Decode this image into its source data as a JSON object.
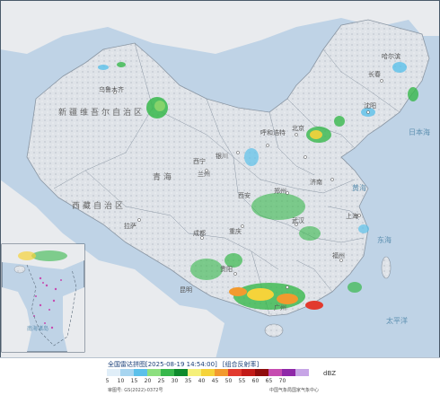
{
  "legend": {
    "title": "全国雷达拼图",
    "timestamp": "[2025-08-19 14:54:00]",
    "product": "[组合反射率]",
    "unit": "dBZ",
    "approval": "审图号: GS(2022)-0372号",
    "credit": "中国气象局国家气象中心",
    "scale_colors": [
      "#e0eef8",
      "#a7d5f0",
      "#5bc0ea",
      "#8ddf7f",
      "#37b84b",
      "#0e8a2c",
      "#f5f07a",
      "#f5d33a",
      "#f29a2e",
      "#e23a2e",
      "#c21b18",
      "#8f0c0c",
      "#c64bb0",
      "#8f28a8",
      "#c7a5e6"
    ],
    "scale_ticks": [
      "5",
      "10",
      "15",
      "20",
      "25",
      "30",
      "35",
      "40",
      "45",
      "50",
      "55",
      "60",
      "65",
      "70"
    ]
  },
  "map": {
    "labels": {
      "urumqi": "乌鲁木齐",
      "xinjiang": "新疆维吾尔自治区",
      "tibet": "西藏自治区",
      "qinghai": "青海",
      "xining": "西宁",
      "lanzhou": "兰州",
      "yinchuan": "银川",
      "hohhot": "呼和浩特",
      "beijing": "北京",
      "shenyang": "沈阳",
      "changchun": "长春",
      "harbin": "哈尔滨",
      "xian": "西安",
      "zhengzhou": "郑州",
      "jinan": "济南",
      "wuhan": "武汉",
      "shanghai": "上海",
      "chengdu": "成都",
      "chongqing": "重庆",
      "guiyang": "贵阳",
      "kunming": "昆明",
      "guangzhou": "广州",
      "fuzhou": "福州",
      "lhasa": "拉萨"
    },
    "seas": {
      "yellow_sea": "黄海",
      "east_china_sea": "东海",
      "pacific": "太平洋",
      "sea_of_japan": "日本海",
      "south_china_sea": "南海诸岛"
    }
  }
}
